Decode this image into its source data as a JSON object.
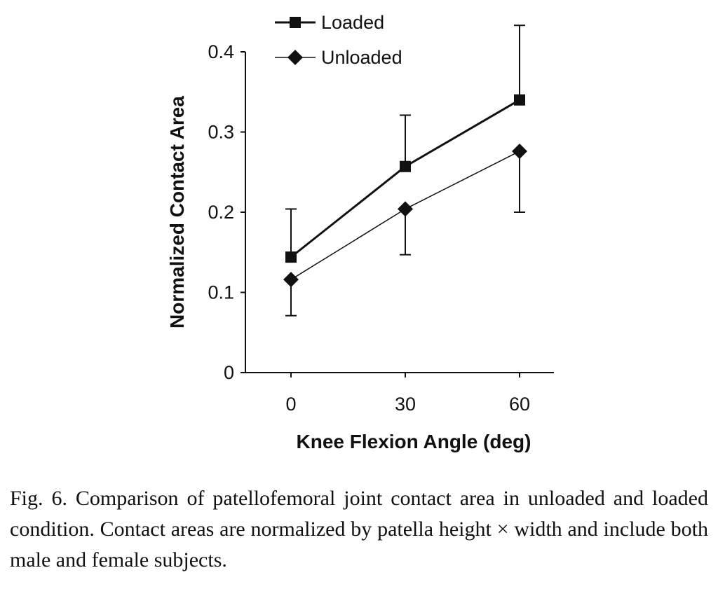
{
  "chart_data": {
    "type": "line",
    "xlabel": "Knee Flexion Angle (deg)",
    "ylabel": "Normalized Contact Area",
    "x": [
      0,
      30,
      60
    ],
    "x_ticks": [
      "0",
      "30",
      "60"
    ],
    "y_ticks": [
      "0",
      "0.1",
      "0.2",
      "0.3",
      "0.4"
    ],
    "ylim": [
      0,
      0.4
    ],
    "legend_position": "top",
    "series": [
      {
        "name": "Loaded",
        "marker": "square",
        "color": "#111111",
        "values": [
          0.144,
          0.257,
          0.34
        ],
        "error_upper": [
          0.06,
          0.064,
          0.093
        ]
      },
      {
        "name": "Unloaded",
        "marker": "diamond",
        "color": "#111111",
        "values": [
          0.116,
          0.204,
          0.276
        ],
        "error_lower": [
          0.045,
          0.057,
          0.076
        ]
      }
    ]
  },
  "caption": "Fig. 6. Comparison of patellofemoral joint contact area in unloaded and loaded condition. Contact areas are normalized by patella height × width and include both male and female subjects."
}
